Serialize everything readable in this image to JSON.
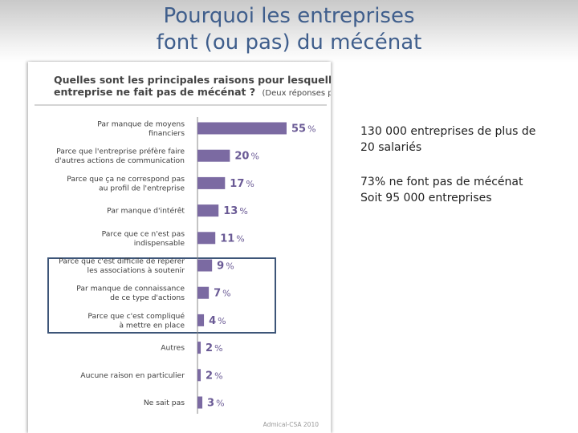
{
  "slide": {
    "title_line1": "Pourquoi les entreprises",
    "title_line2": "font (ou pas) du mécénat"
  },
  "notes": {
    "line1": "130 000 entreprises de plus de",
    "line2": "20 salariés",
    "line3": "73% ne font pas de mécénat",
    "line4": "Soit 95 000 entreprises"
  },
  "colors": {
    "bar": "#7b6aa2",
    "label": "#6a5a95",
    "title": "#3f5e8c",
    "highlight": "#3d5578"
  },
  "chart_data": {
    "type": "bar",
    "orientation": "horizontal",
    "title_line1": "Quelles sont les principales raisons pour lesquelles votre",
    "title_line2": "entreprise ne fait pas de mécénat ?",
    "title_note": "(Deux réponses possibles)",
    "source": "Admical-CSA 2010",
    "unit": "%",
    "categories": [
      [
        "Par manque de moyens",
        "financiers"
      ],
      [
        "Parce que l'entreprise préfère faire",
        "d'autres actions de communication"
      ],
      [
        "Parce que ça ne correspond pas",
        "au profil de l'entreprise"
      ],
      [
        "Par manque d'intérêt"
      ],
      [
        "Parce que ce n'est pas",
        "indispensable"
      ],
      [
        "Parce que c'est difficile de repérer",
        "les associations à soutenir"
      ],
      [
        "Par manque de connaissance",
        "de ce type d'actions"
      ],
      [
        "Parce que c'est compliqué",
        "à mettre en place"
      ],
      [
        "Autres"
      ],
      [
        "Aucune raison en particulier"
      ],
      [
        "Ne sait pas"
      ]
    ],
    "values": [
      55,
      20,
      17,
      13,
      11,
      9,
      7,
      4,
      2,
      2,
      3
    ],
    "xlim": [
      0,
      55
    ],
    "highlighted_categories": [
      5,
      6,
      7
    ]
  }
}
